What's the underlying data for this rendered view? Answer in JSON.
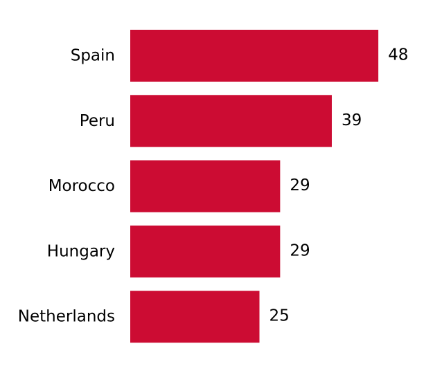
{
  "chart_data": {
    "type": "bar",
    "orientation": "horizontal",
    "title": "",
    "xlabel": "",
    "ylabel": "",
    "categories": [
      "Spain",
      "Peru",
      "Morocco",
      "Hungary",
      "Netherlands"
    ],
    "values": [
      48,
      39,
      29,
      29,
      25
    ],
    "value_labels": [
      "48",
      "39",
      "29",
      "29",
      "25"
    ],
    "xlim": [
      0,
      48
    ],
    "grid": false,
    "legend": "none",
    "bar_color": "#cc0c33"
  }
}
